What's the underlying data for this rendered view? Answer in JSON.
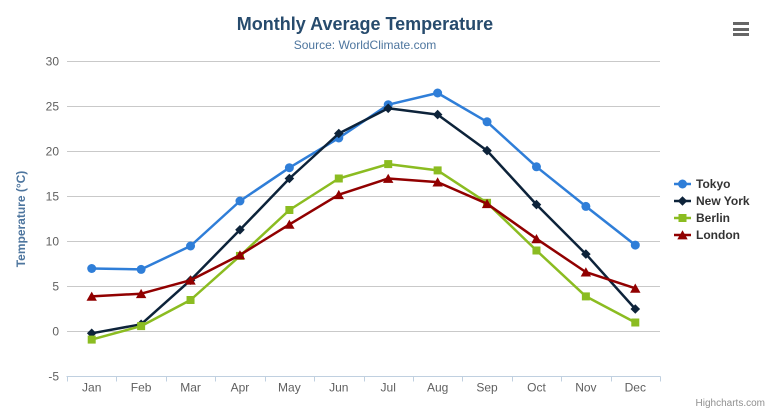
{
  "header": {
    "title": "Monthly Average Temperature",
    "subtitle": "Source: WorldClimate.com"
  },
  "icons": {
    "context_menu": "hamburger-menu"
  },
  "credits": "Highcharts.com",
  "colors": {
    "grid": "#C9C9C9",
    "axis_line": "#C0D0E0",
    "tick": "#C0D0E0",
    "axis_label": "#606060",
    "axis_title": "#4d759e",
    "title": "#274b6d",
    "subtitle": "#4d759e",
    "legend_text": "#333333",
    "credits": "#909090",
    "menu_icon": "#666666"
  },
  "chart_data": {
    "type": "line",
    "title": "Monthly Average Temperature",
    "subtitle": "Source: WorldClimate.com",
    "xlabel": "",
    "ylabel": "Temperature (°C)",
    "ylim": [
      -5,
      30
    ],
    "ytick_step": 5,
    "grid": true,
    "legend_position": "right",
    "categories": [
      "Jan",
      "Feb",
      "Mar",
      "Apr",
      "May",
      "Jun",
      "Jul",
      "Aug",
      "Sep",
      "Oct",
      "Nov",
      "Dec"
    ],
    "series": [
      {
        "name": "Tokyo",
        "color": "#2f7ed8",
        "marker": "circle",
        "values": [
          7.0,
          6.9,
          9.5,
          14.5,
          18.2,
          21.5,
          25.2,
          26.5,
          23.3,
          18.3,
          13.9,
          9.6
        ]
      },
      {
        "name": "New York",
        "color": "#0d233a",
        "marker": "diamond",
        "values": [
          -0.2,
          0.8,
          5.7,
          11.3,
          17.0,
          22.0,
          24.8,
          24.1,
          20.1,
          14.1,
          8.6,
          2.5
        ]
      },
      {
        "name": "Berlin",
        "color": "#8bbc21",
        "marker": "square",
        "values": [
          -0.9,
          0.6,
          3.5,
          8.4,
          13.5,
          17.0,
          18.6,
          17.9,
          14.3,
          9.0,
          3.9,
          1.0
        ]
      },
      {
        "name": "London",
        "color": "#910000",
        "marker": "triangle",
        "values": [
          3.9,
          4.2,
          5.7,
          8.5,
          11.9,
          15.2,
          17.0,
          16.6,
          14.2,
          10.3,
          6.6,
          4.8
        ]
      }
    ]
  }
}
